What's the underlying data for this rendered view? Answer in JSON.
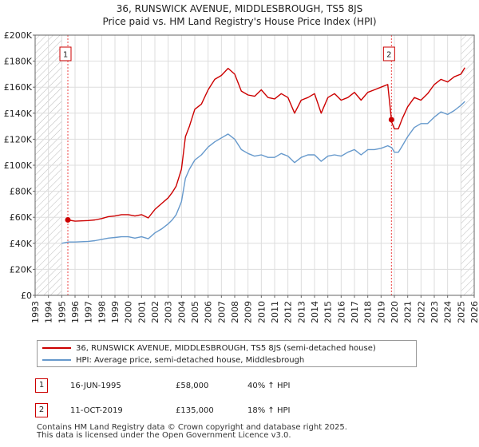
{
  "title": {
    "line1": "36, RUNSWICK AVENUE, MIDDLESBROUGH, TS5 8JS",
    "line2": "Price paid vs. HM Land Registry's House Price Index (HPI)"
  },
  "colors": {
    "property": "#cc0000",
    "hpi": "#6699cc",
    "grid": "#dddddd",
    "hatch": "#bbbbbb",
    "marker_line": "#ee4444"
  },
  "chart_data": {
    "type": "line",
    "xlim": [
      1993,
      2026
    ],
    "ylim": [
      0,
      200000
    ],
    "x_ticks": [
      1993,
      1994,
      1995,
      1996,
      1997,
      1998,
      1999,
      2000,
      2001,
      2002,
      2003,
      2004,
      2005,
      2006,
      2007,
      2008,
      2009,
      2010,
      2011,
      2012,
      2013,
      2014,
      2015,
      2016,
      2017,
      2018,
      2019,
      2020,
      2021,
      2022,
      2023,
      2024,
      2025,
      2026
    ],
    "y_ticks": [
      {
        "value": 0,
        "label": "£0"
      },
      {
        "value": 20000,
        "label": "£20K"
      },
      {
        "value": 40000,
        "label": "£40K"
      },
      {
        "value": 60000,
        "label": "£60K"
      },
      {
        "value": 80000,
        "label": "£80K"
      },
      {
        "value": 100000,
        "label": "£100K"
      },
      {
        "value": 120000,
        "label": "£120K"
      },
      {
        "value": 140000,
        "label": "£140K"
      },
      {
        "value": 160000,
        "label": "£160K"
      },
      {
        "value": 180000,
        "label": "£180K"
      },
      {
        "value": 200000,
        "label": "£200K"
      }
    ],
    "hatched_ranges": [
      [
        1993,
        1995.0
      ],
      [
        2025.0,
        2026
      ]
    ],
    "series": [
      {
        "name": "36, RUNSWICK AVENUE, MIDDLESBROUGH, TS5 8JS (semi-detached house)",
        "color": "#cc0000",
        "x": [
          1995.46,
          1996,
          1997,
          1997.5,
          1998,
          1998.5,
          1999,
          1999.5,
          2000,
          2000.5,
          2001,
          2001.5,
          2002,
          2002.5,
          2003,
          2003.3,
          2003.6,
          2004,
          2004.3,
          2004.6,
          2005,
          2005.5,
          2006,
          2006.5,
          2007,
          2007.5,
          2008,
          2008.5,
          2009,
          2009.5,
          2010,
          2010.5,
          2011,
          2011.5,
          2012,
          2012.5,
          2013,
          2013.5,
          2014,
          2014.5,
          2015,
          2015.5,
          2016,
          2016.5,
          2017,
          2017.5,
          2018,
          2018.5,
          2019,
          2019.5,
          2019.78,
          2019.8,
          2020,
          2020.3,
          2020.6,
          2021,
          2021.5,
          2022,
          2022.5,
          2023,
          2023.5,
          2024,
          2024.5,
          2025,
          2025.3
        ],
        "values": [
          58000,
          57000,
          57500,
          58000,
          59000,
          60500,
          61000,
          62000,
          62000,
          61000,
          62000,
          59500,
          66000,
          70500,
          75000,
          79000,
          84000,
          97000,
          122000,
          130000,
          143000,
          147000,
          158000,
          166000,
          169000,
          174500,
          170000,
          157000,
          154000,
          153000,
          158000,
          152000,
          151000,
          155000,
          152000,
          140000,
          150000,
          152000,
          155000,
          140000,
          152000,
          155000,
          150000,
          152000,
          156000,
          150000,
          156000,
          158000,
          160000,
          162000,
          135000,
          133000,
          128000,
          128000,
          136000,
          145000,
          152000,
          150000,
          155000,
          162000,
          166000,
          164000,
          168000,
          170000,
          175000
        ]
      },
      {
        "name": "HPI: Average price, semi-detached house, Middlesbrough",
        "color": "#6699cc",
        "x": [
          1995,
          1995.5,
          1996,
          1997,
          1997.5,
          1998,
          1998.5,
          1999,
          1999.5,
          2000,
          2000.5,
          2001,
          2001.5,
          2002,
          2002.5,
          2003,
          2003.3,
          2003.6,
          2004,
          2004.3,
          2004.6,
          2005,
          2005.5,
          2006,
          2006.5,
          2007,
          2007.5,
          2008,
          2008.5,
          2009,
          2009.5,
          2010,
          2010.5,
          2011,
          2011.5,
          2012,
          2012.5,
          2013,
          2013.5,
          2014,
          2014.5,
          2015,
          2015.5,
          2016,
          2016.5,
          2017,
          2017.5,
          2018,
          2018.5,
          2019,
          2019.5,
          2019.8,
          2020,
          2020.3,
          2020.6,
          2021,
          2021.5,
          2022,
          2022.5,
          2023,
          2023.5,
          2024,
          2024.5,
          2025,
          2025.3
        ],
        "values": [
          40000,
          41000,
          41000,
          41500,
          42000,
          43000,
          44000,
          44500,
          45000,
          45000,
          44000,
          45000,
          43500,
          48000,
          51000,
          55000,
          58000,
          62000,
          72000,
          90000,
          97000,
          104000,
          108000,
          114000,
          118000,
          121000,
          124000,
          120000,
          112000,
          109000,
          107000,
          108000,
          106000,
          106000,
          109000,
          107000,
          102000,
          106000,
          108000,
          108000,
          103000,
          107000,
          108000,
          107000,
          110000,
          112000,
          108000,
          112000,
          112000,
          113000,
          115000,
          113500,
          110000,
          110000,
          115000,
          122000,
          129000,
          132000,
          132000,
          137000,
          141000,
          139000,
          142000,
          146000,
          149000
        ]
      }
    ],
    "sales": [
      {
        "id": "1",
        "x": 1995.46,
        "value": 58000
      },
      {
        "id": "2",
        "x": 2019.78,
        "value": 135000
      }
    ]
  },
  "legend": {
    "property_label": "36, RUNSWICK AVENUE, MIDDLESBROUGH, TS5 8JS (semi-detached house)",
    "hpi_label": "HPI: Average price, semi-detached house, Middlesbrough"
  },
  "sales_table": [
    {
      "id": "1",
      "date": "16-JUN-1995",
      "price": "£58,000",
      "hpi": "40% ↑ HPI"
    },
    {
      "id": "2",
      "date": "11-OCT-2019",
      "price": "£135,000",
      "hpi": "18% ↑ HPI"
    }
  ],
  "footer": {
    "line1": "Contains HM Land Registry data © Crown copyright and database right 2025.",
    "line2": "This data is licensed under the Open Government Licence v3.0."
  }
}
